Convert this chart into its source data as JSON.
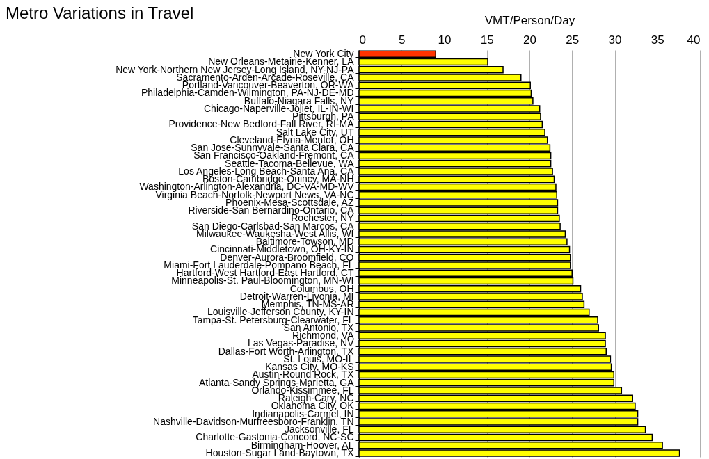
{
  "chart_data": {
    "type": "bar",
    "orientation": "horizontal",
    "title": "Metro Variations in Travel",
    "xlabel": "VMT/Person/Day",
    "categories": [
      "New York City",
      "New Orleans-Metairie-Kenner, LA",
      "New York-Northern New Jersey-Long Island, NY-NJ-PA",
      "Sacramento-Arden-Arcade-Roseville, CA",
      "Portland-Vancouver-Beaverton, OR-WA",
      "Philadelphia-Camden-Wilmington, PA-NJ-DE-MD",
      "Buffalo-Niagara Falls, NY",
      "Chicago-Naperville-Joliet, IL-IN-WI",
      "Pittsburgh, PA",
      "Providence-New Bedford-Fall River, RI-MA",
      "Salt Lake City, UT",
      "Cleveland-Elyria-Mentor, OH",
      "San Jose-Sunnyvale-Santa Clara, CA",
      "San Francisco-Oakland-Fremont, CA",
      "Seattle-Tacoma-Bellevue, WA",
      "Los Angeles-Long Beach-Santa Ana, CA",
      "Boston-Cambridge-Quincy, MA-NH",
      "Washington-Arlington-Alexandria, DC-VA-MD-WV",
      "Virginia Beach-Norfolk-Newport News, VA-NC",
      "Phoenix-Mesa-Scottsdale, AZ",
      "Riverside-San Bernardino-Ontario, CA",
      "Rochester, NY",
      "San Diego-Carlsbad-San Marcos, CA",
      "Milwaukee-Waukesha-West Allis, WI",
      "Baltimore-Towson, MD",
      "Cincinnati-Middletown, OH-KY-IN",
      "Denver-Aurora-Broomfield, CO",
      "Miami-Fort Lauderdale-Pompano Beach, FL",
      "Hartford-West Hartford-East Hartford, CT",
      "Minneapolis-St. Paul-Bloomington, MN-WI",
      "Columbus, OH",
      "Detroit-Warren-Livonia, MI",
      "Memphis, TN-MS-AR",
      "Louisville-Jefferson County, KY-IN",
      "Tampa-St. Petersburg-Clearwater, FL",
      "San Antonio, TX",
      "Richmond, VA",
      "Las Vegas-Paradise, NV",
      "Dallas-Fort Worth-Arlington, TX",
      "St. Louis, MO-IL",
      "Kansas City, MO-KS",
      "Austin-Round Rock, TX",
      "Atlanta-Sandy Springs-Marietta, GA",
      "Orlando-Kissimmee, FL",
      "Raleigh-Cary, NC",
      "Oklahoma City, OK",
      "Indianapolis-Carmel, IN",
      "Nashville-Davidson-Murfreesboro-Franklin, TN",
      "Jacksonville, FL",
      "Charlotte-Gastonia-Concord, NC-SC",
      "Birmingham-Hoover, AL",
      "Houston-Sugar Land-Baytown, TX"
    ],
    "values": [
      9.0,
      15.1,
      16.9,
      19.0,
      20.1,
      20.2,
      20.4,
      21.2,
      21.3,
      21.5,
      21.8,
      22.1,
      22.4,
      22.5,
      22.5,
      22.7,
      22.9,
      23.1,
      23.2,
      23.3,
      23.3,
      23.5,
      23.6,
      24.2,
      24.4,
      24.7,
      24.8,
      24.8,
      25.0,
      25.1,
      26.0,
      26.2,
      26.4,
      27.0,
      28.0,
      28.1,
      28.9,
      28.9,
      29.0,
      29.5,
      29.6,
      29.9,
      29.9,
      30.8,
      32.1,
      32.4,
      32.7,
      32.7,
      33.6,
      34.4,
      35.6,
      37.6
    ],
    "colors": [
      "#ff3300",
      "#ffff00",
      "#ffff00",
      "#ffff00",
      "#ffff00",
      "#ffff00",
      "#ffff00",
      "#ffff00",
      "#ffff00",
      "#ffff00",
      "#ffff00",
      "#ffff00",
      "#ffff00",
      "#ffff00",
      "#ffff00",
      "#ffff00",
      "#ffff00",
      "#ffff00",
      "#ffff00",
      "#ffff00",
      "#ffff00",
      "#ffff00",
      "#ffff00",
      "#ffff00",
      "#ffff00",
      "#ffff00",
      "#ffff00",
      "#ffff00",
      "#ffff00",
      "#ffff00",
      "#ffff00",
      "#ffff00",
      "#ffff00",
      "#ffff00",
      "#ffff00",
      "#ffff00",
      "#ffff00",
      "#ffff00",
      "#ffff00",
      "#ffff00",
      "#ffff00",
      "#ffff00",
      "#ffff00",
      "#ffff00",
      "#ffff00",
      "#ffff00",
      "#ffff00",
      "#ffff00",
      "#ffff00",
      "#ffff00",
      "#ffff00",
      "#ffff00"
    ],
    "xlim": [
      0,
      40
    ],
    "xticks": [
      0,
      5,
      10,
      15,
      20,
      25,
      30,
      35,
      40
    ],
    "grid": "x"
  }
}
